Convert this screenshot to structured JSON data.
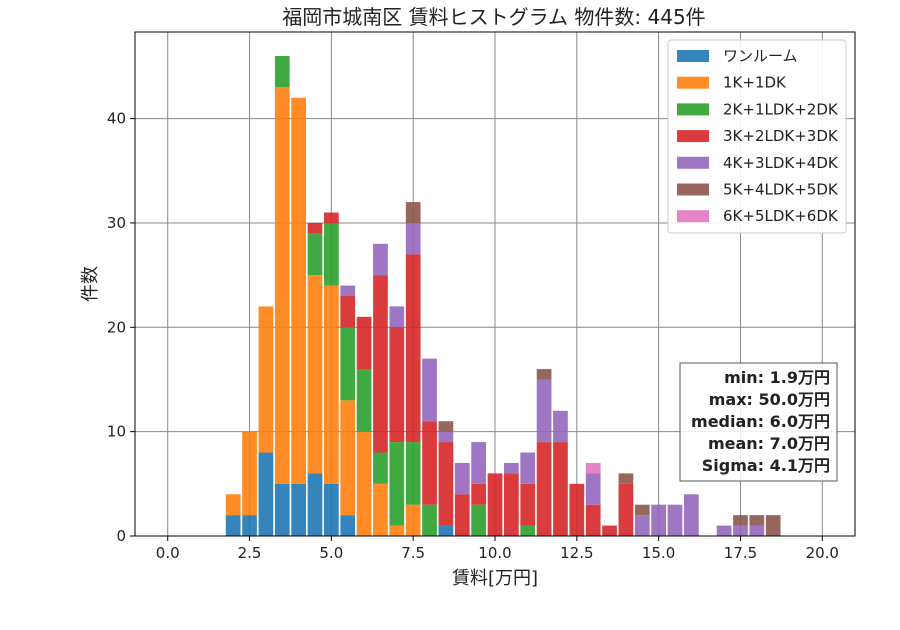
{
  "chart_data": {
    "type": "bar",
    "title": "福岡市城南区 賃料ヒストグラム  物件数: 445件",
    "xlabel": "賃料[万円]",
    "ylabel": "件数",
    "xlim": [
      -1.0,
      21.0
    ],
    "ylim": [
      0,
      48.3
    ],
    "xticks": [
      "0.0",
      "2.5",
      "5.0",
      "7.5",
      "10.0",
      "12.5",
      "15.0",
      "17.5",
      "20.0"
    ],
    "xtick_values": [
      0,
      2.5,
      5,
      7.5,
      10,
      12.5,
      15,
      17.5,
      20
    ],
    "yticks": [
      "0",
      "10",
      "20",
      "30",
      "40"
    ],
    "ytick_values": [
      0,
      10,
      20,
      30,
      40
    ],
    "grid": true,
    "legend_position": "top-right",
    "bin_width": 0.5,
    "bin_x": [
      2.0,
      2.5,
      3.0,
      3.5,
      4.0,
      4.5,
      5.0,
      5.5,
      6.0,
      6.5,
      7.0,
      7.5,
      8.0,
      8.5,
      9.0,
      9.5,
      10.0,
      10.5,
      11.0,
      11.5,
      12.0,
      12.5,
      13.0,
      13.5,
      14.0,
      14.5,
      15.0,
      15.5,
      16.0,
      16.5,
      17.0,
      17.5,
      18.0,
      18.5
    ],
    "series": [
      {
        "name": "ワンルーム",
        "color": "#1f77b4",
        "values": [
          2,
          2,
          8,
          5,
          5,
          6,
          5,
          2,
          0,
          0,
          0,
          0,
          0,
          1,
          0,
          0,
          0,
          0,
          0,
          0,
          0,
          0,
          0,
          0,
          0,
          0,
          0,
          0,
          0,
          0,
          0,
          0,
          0,
          0
        ]
      },
      {
        "name": "1K+1DK",
        "color": "#ff7f0e",
        "values": [
          2,
          8,
          14,
          38,
          37,
          19,
          19,
          11,
          10,
          5,
          1,
          3,
          0,
          0,
          0,
          0,
          0,
          0,
          0,
          0,
          0,
          0,
          0,
          0,
          0,
          0,
          0,
          0,
          0,
          0,
          0,
          0,
          0,
          0
        ]
      },
      {
        "name": "2K+1LDK+2DK",
        "color": "#2ca02c",
        "values": [
          0,
          0,
          0,
          3,
          0,
          4,
          6,
          7,
          6,
          3,
          8,
          6,
          3,
          0,
          0,
          3,
          0,
          0,
          1,
          0,
          0,
          0,
          0,
          0,
          0,
          0,
          0,
          0,
          0,
          0,
          0,
          0,
          0,
          0
        ]
      },
      {
        "name": "3K+2LDK+3DK",
        "color": "#d62728",
        "values": [
          0,
          0,
          0,
          0,
          0,
          1,
          1,
          3,
          5,
          17,
          11,
          18,
          8,
          8,
          4,
          2,
          6,
          6,
          4,
          9,
          9,
          5,
          3,
          1,
          5,
          0,
          0,
          0,
          0,
          0,
          0,
          0,
          0,
          0
        ]
      },
      {
        "name": "4K+3LDK+4DK",
        "color": "#9467bd",
        "values": [
          0,
          0,
          0,
          0,
          0,
          0,
          0,
          1,
          0,
          3,
          2,
          3,
          6,
          1,
          3,
          4,
          0,
          1,
          3,
          6,
          3,
          0,
          3,
          0,
          0,
          2,
          3,
          3,
          4,
          0,
          1,
          1,
          1,
          0
        ]
      },
      {
        "name": "5K+4LDK+5DK",
        "color": "#8c564b",
        "values": [
          0,
          0,
          0,
          0,
          0,
          0,
          0,
          0,
          0,
          0,
          0,
          2,
          0,
          1,
          0,
          0,
          0,
          0,
          0,
          1,
          0,
          0,
          0,
          0,
          1,
          1,
          0,
          0,
          0,
          0,
          0,
          1,
          1,
          2
        ]
      },
      {
        "name": "6K+5LDK+6DK",
        "color": "#e377c2",
        "values": [
          0,
          0,
          0,
          0,
          0,
          0,
          0,
          0,
          0,
          0,
          0,
          0,
          0,
          0,
          0,
          0,
          0,
          0,
          0,
          0,
          0,
          0,
          1,
          0,
          0,
          0,
          0,
          0,
          0,
          0,
          0,
          0,
          0,
          0
        ]
      }
    ],
    "stats": {
      "min": "min: 1.9万円",
      "max": "max: 50.0万円",
      "median": "median: 6.0万円",
      "mean": "mean: 7.0万円",
      "sigma": "Sigma: 4.1万円"
    }
  }
}
